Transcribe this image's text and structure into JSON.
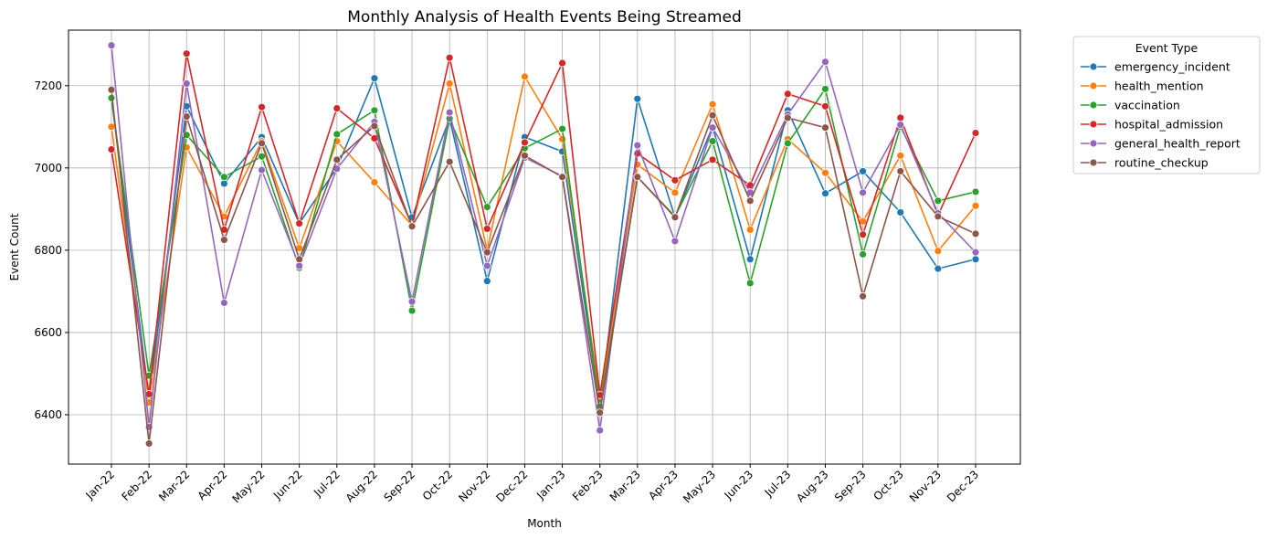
{
  "chart_data": {
    "type": "line",
    "title": "Monthly Analysis of Health Events Being Streamed",
    "xlabel": "Month",
    "ylabel": "Event Count",
    "ylim": [
      6280,
      7335
    ],
    "yticks": [
      6400,
      6600,
      6800,
      7000,
      7200
    ],
    "grid": true,
    "legend_title": "Event Type",
    "legend_placement": "outside-top-right",
    "categories": [
      "Jan-22",
      "Feb-22",
      "Mar-22",
      "Apr-22",
      "May-22",
      "Jun-22",
      "Jul-22",
      "Aug-22",
      "Sep-22",
      "Oct-22",
      "Nov-22",
      "Dec-22",
      "Jan-23",
      "Feb-23",
      "Mar-23",
      "Apr-23",
      "May-23",
      "Jun-23",
      "Jul-23",
      "Aug-23",
      "Sep-23",
      "Oct-23",
      "Nov-23",
      "Dec-23"
    ],
    "series": [
      {
        "name": "emergency_incident",
        "color": "#1f77b4",
        "values": [
          7170,
          6440,
          7150,
          6962,
          7075,
          6865,
          7000,
          7218,
          6880,
          7120,
          6725,
          7075,
          7040,
          6420,
          7168,
          6880,
          7100,
          6778,
          7140,
          6938,
          6992,
          6892,
          6755,
          6778
        ]
      },
      {
        "name": "health_mention",
        "color": "#ff7f0e",
        "values": [
          7100,
          6430,
          7050,
          6882,
          7065,
          6805,
          7065,
          6965,
          6860,
          7205,
          6800,
          7222,
          7070,
          6440,
          7008,
          6940,
          7155,
          6850,
          7070,
          6988,
          6870,
          7030,
          6798,
          6908
        ]
      },
      {
        "name": "vaccination",
        "color": "#2ca02c",
        "values": [
          7170,
          6495,
          7080,
          6978,
          7028,
          6757,
          7082,
          7140,
          6653,
          7120,
          6905,
          7048,
          7095,
          6420,
          6978,
          6882,
          7065,
          6720,
          7060,
          7192,
          6790,
          7100,
          6920,
          6942
        ]
      },
      {
        "name": "hospital_admission",
        "color": "#d62728",
        "values": [
          7045,
          6450,
          7278,
          6850,
          7148,
          6865,
          7145,
          7072,
          6860,
          7268,
          6852,
          7062,
          7255,
          6448,
          7035,
          6970,
          7020,
          6958,
          7180,
          7150,
          6838,
          7122,
          6885,
          7085
        ]
      },
      {
        "name": "general_health_report",
        "color": "#9467bd",
        "values": [
          7298,
          6370,
          7205,
          6672,
          6995,
          6762,
          6998,
          7112,
          6675,
          7135,
          6762,
          7025,
          6980,
          6362,
          7055,
          6822,
          7098,
          6940,
          7130,
          7258,
          6940,
          7105,
          6890,
          6795
        ]
      },
      {
        "name": "routine_checkup",
        "color": "#8c564b",
        "values": [
          7190,
          6330,
          7125,
          6825,
          7060,
          6778,
          7020,
          7102,
          6858,
          7015,
          6795,
          7030,
          6978,
          6405,
          6978,
          6880,
          7128,
          6920,
          7122,
          7098,
          6688,
          6992,
          6882,
          6840
        ]
      }
    ]
  }
}
